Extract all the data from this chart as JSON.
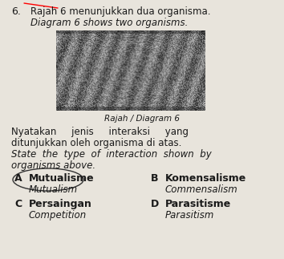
{
  "question_number": "6.",
  "title_malay": "Rajah 6 menunjukkan dua organisma.",
  "title_english": "Diagram 6 shows two organisms.",
  "diagram_label": "Rajah / Diagram 6",
  "question_malay_line1": "Nyatakan     jenis     interaksi     yang",
  "question_malay_line2": "ditunjukkan oleh organisma di atas.",
  "question_english_line1": "State  the  type  of  interaction  shown  by",
  "question_english_line2": "organisms above.",
  "options": [
    {
      "letter": "A",
      "malay": "Mutualisme",
      "english": "Mutualism",
      "circled": true
    },
    {
      "letter": "B",
      "malay": "Komensalisme",
      "english": "Commensalism",
      "circled": false
    },
    {
      "letter": "C",
      "malay": "Persaingan",
      "english": "Competition",
      "circled": false
    },
    {
      "letter": "D",
      "malay": "Parasitisme",
      "english": "Parasitism",
      "circled": false
    }
  ],
  "bg_color": "#e8e4dc",
  "text_color": "#1a1a1a",
  "font_main": 8.5,
  "font_bold": 9.0
}
